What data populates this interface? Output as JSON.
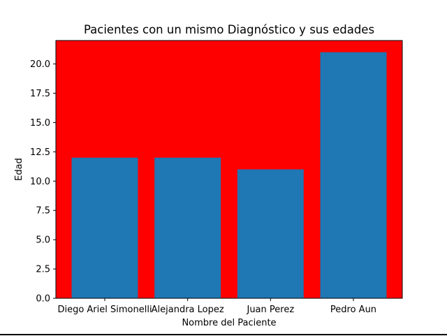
{
  "chart_data": {
    "type": "bar",
    "title": "Pacientes con un mismo Diagnóstico y sus edades",
    "xlabel": "Nombre del Paciente",
    "ylabel": "Edad",
    "categories": [
      "Diego Ariel Simonelli",
      "Alejandra Lopez",
      "Juan Perez",
      "Pedro Aun"
    ],
    "values": [
      12,
      12,
      11,
      21
    ],
    "ylim": [
      0,
      22
    ],
    "yticks": [
      "0.0",
      "2.5",
      "5.0",
      "7.5",
      "10.0",
      "12.5",
      "15.0",
      "17.5",
      "20.0"
    ],
    "ytick_values": [
      0,
      2.5,
      5,
      7.5,
      10,
      12.5,
      15,
      17.5,
      20
    ],
    "grid": false,
    "colors": {
      "plot_background": "#ff0000",
      "bar": "#1f77b4",
      "figure_background": "#ffffff"
    }
  }
}
